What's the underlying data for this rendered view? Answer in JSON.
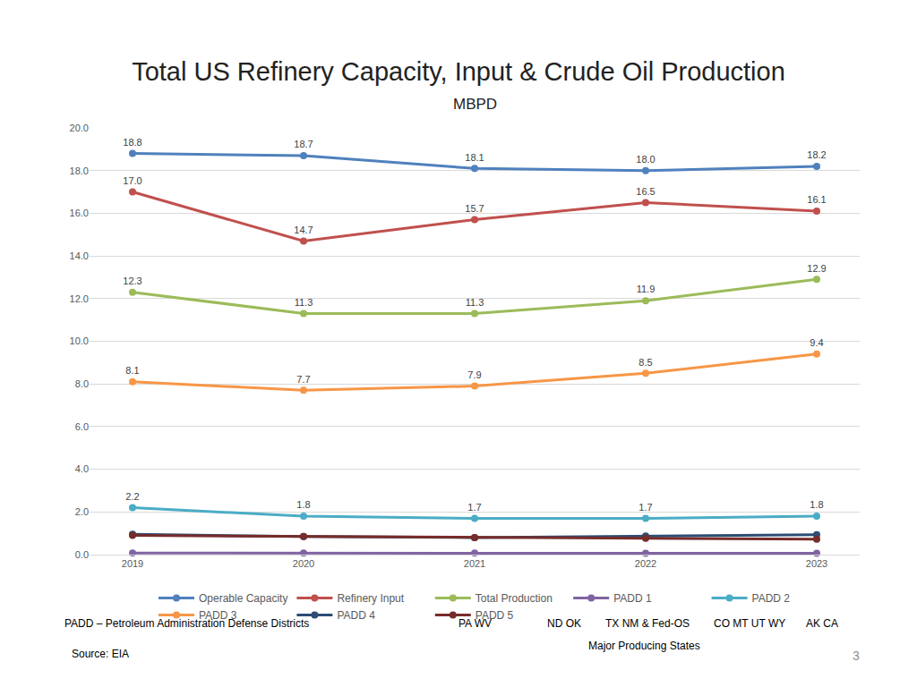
{
  "chart_data": {
    "type": "line",
    "title": "Total US Refinery Capacity, Input & Crude Oil Production",
    "subtitle": "MBPD",
    "categories": [
      "2019",
      "2020",
      "2021",
      "2022",
      "2023"
    ],
    "ylim": [
      0,
      20
    ],
    "yticks": [
      {
        "value": 0,
        "label": "0.0"
      },
      {
        "value": 2,
        "label": "2.0"
      },
      {
        "value": 4,
        "label": "4.0"
      },
      {
        "value": 6,
        "label": "6.0"
      },
      {
        "value": 8,
        "label": "8.0"
      },
      {
        "value": 10,
        "label": "10.0"
      },
      {
        "value": 12,
        "label": "12.0"
      },
      {
        "value": 14,
        "label": "14.0"
      },
      {
        "value": 16,
        "label": "16.0"
      },
      {
        "value": 18,
        "label": "18.0"
      },
      {
        "value": 20,
        "label": "20.0"
      }
    ],
    "grid": true,
    "legend": "bottom",
    "marker": "circle",
    "line_style": "solid",
    "series": [
      {
        "name": "Operable Capacity",
        "color": "#4f81bd",
        "values": [
          18.8,
          18.7,
          18.1,
          18.0,
          18.2
        ],
        "value_labels": [
          "18.8",
          "18.7",
          "18.1",
          "18.0",
          "18.2"
        ],
        "data_labels": true
      },
      {
        "name": "Refinery Input",
        "color": "#c0504d",
        "values": [
          17.0,
          14.7,
          15.7,
          16.5,
          16.1
        ],
        "value_labels": [
          "17.0",
          "14.7",
          "15.7",
          "16.5",
          "16.1"
        ],
        "data_labels": true
      },
      {
        "name": "Total Production",
        "color": "#9bbb59",
        "values": [
          12.3,
          11.3,
          11.3,
          11.9,
          12.9
        ],
        "value_labels": [
          "12.3",
          "11.3",
          "11.3",
          "11.9",
          "12.9"
        ],
        "data_labels": true
      },
      {
        "name": "PADD 1",
        "color": "#8064a2",
        "values": [
          0.07,
          0.07,
          0.07,
          0.06,
          0.06
        ],
        "data_labels": false
      },
      {
        "name": "PADD 2",
        "color": "#4bacc6",
        "values": [
          2.2,
          1.8,
          1.7,
          1.7,
          1.8
        ],
        "value_labels": [
          "2.2",
          "1.8",
          "1.7",
          "1.7",
          "1.8"
        ],
        "data_labels": true
      },
      {
        "name": "PADD 3",
        "color": "#f79646",
        "values": [
          8.1,
          7.7,
          7.9,
          8.5,
          9.4
        ],
        "value_labels": [
          "8.1",
          "7.7",
          "7.9",
          "8.5",
          "9.4"
        ],
        "data_labels": true
      },
      {
        "name": "PADD 4",
        "color": "#2c4d75",
        "values": [
          0.95,
          0.85,
          0.8,
          0.87,
          0.93
        ],
        "data_labels": false
      },
      {
        "name": "PADD 5",
        "color": "#772c2a",
        "values": [
          0.9,
          0.85,
          0.8,
          0.77,
          0.72
        ],
        "data_labels": false
      }
    ],
    "annotations": {
      "padd_note": "PADD – Petroleum Administration Defense Districts",
      "states": [
        "PA WV",
        "ND OK",
        "TX NM & Fed-OS",
        "CO MT UT WY",
        "AK CA"
      ],
      "states_caption": "Major Producing States",
      "source": "Source: EIA",
      "page_number": 3
    }
  }
}
